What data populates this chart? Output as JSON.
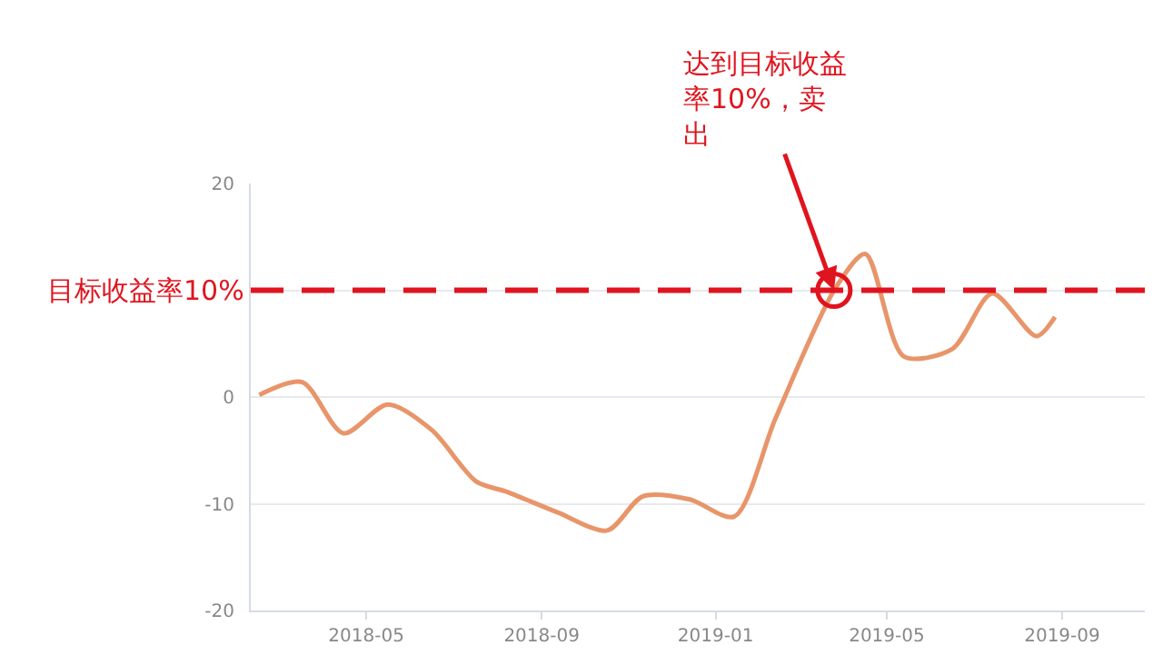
{
  "chart_data": {
    "type": "line",
    "x": [
      "2018-02-15",
      "2018-03-17",
      "2018-04-15",
      "2018-05-16",
      "2018-06-16",
      "2018-07-17",
      "2018-08-08",
      "2018-09-12",
      "2018-10-17",
      "2018-11-11",
      "2018-12-14",
      "2019-01-14",
      "2019-02-12",
      "2019-03-26",
      "2019-04-16",
      "2019-05-13",
      "2019-06-16",
      "2019-07-14",
      "2019-08-14",
      "2019-08-27"
    ],
    "series": [
      {
        "color": "#e8956a",
        "values": [
          0.2,
          1.4,
          -3.4,
          -0.7,
          -3.1,
          -7.9,
          -8.9,
          -10.8,
          -12.5,
          -9.3,
          -9.6,
          -11.2,
          -2.0,
          10.2,
          13.4,
          3.8,
          4.5,
          9.7,
          5.7,
          7.5
        ]
      }
    ],
    "xlim": [
      "2018-02-09",
      "2019-10-29"
    ],
    "xticks": [
      {
        "value": "2018-05-01",
        "label": "2018-05"
      },
      {
        "value": "2018-09-01",
        "label": "2018-09"
      },
      {
        "value": "2019-01-01",
        "label": "2019-01"
      },
      {
        "value": "2019-05-01",
        "label": "2019-05"
      },
      {
        "value": "2019-09-01",
        "label": "2019-09"
      }
    ],
    "ylim": [
      -20,
      20
    ],
    "yticks": [
      -20,
      -10,
      0,
      {
        "value": 10,
        "label": null
      },
      20
    ],
    "grid": "y",
    "marker": "none",
    "line_style": "solid",
    "ref_lines": [
      {
        "axis": "y",
        "value": 10,
        "label": "目标收益率10%",
        "color": "#e0141e",
        "line_style": "dashed"
      }
    ],
    "annotations": [
      {
        "text": "达到目标收益率10%，卖出",
        "x": "2019-03-25",
        "y": 10
      }
    ]
  }
}
